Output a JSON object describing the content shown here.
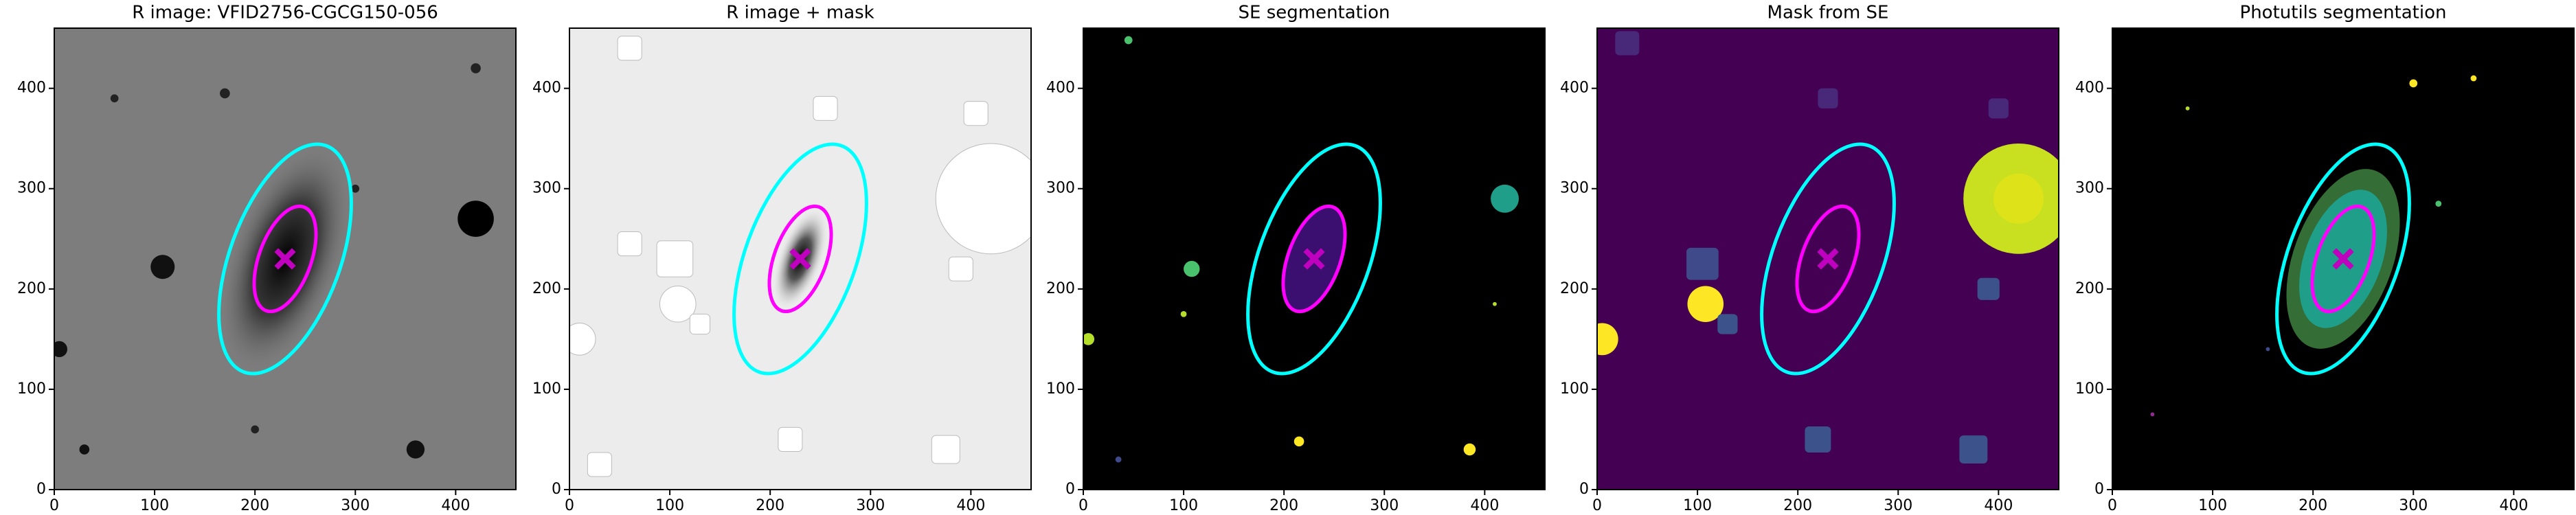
{
  "chart_data": [
    {
      "type": "image",
      "title": "R image: VFID2756-CGCG150-056",
      "background": "#7d7d7d",
      "xlim": [
        0,
        460
      ],
      "ylim": [
        0,
        460
      ],
      "xticks": [
        0,
        100,
        200,
        300,
        400
      ],
      "yticks": [
        0,
        100,
        200,
        300,
        400
      ],
      "ellipses": [
        {
          "color": "#00ffff",
          "x": 230,
          "y": 230,
          "a": 120,
          "b": 55,
          "angle": 70
        },
        {
          "color": "#ff00ff",
          "x": 230,
          "y": 230,
          "a": 55,
          "b": 26,
          "angle": 70
        }
      ],
      "marker": {
        "x": 230,
        "y": 230,
        "color": "#bf00bf"
      }
    },
    {
      "type": "image",
      "title": "R image + mask",
      "background": "#ececec",
      "xlim": [
        0,
        460
      ],
      "ylim": [
        0,
        460
      ],
      "xticks": [
        0,
        100,
        200,
        300,
        400
      ],
      "yticks": [
        0,
        100,
        200,
        300,
        400
      ],
      "ellipses": [
        {
          "color": "#00ffff",
          "x": 230,
          "y": 230,
          "a": 120,
          "b": 55,
          "angle": 70
        },
        {
          "color": "#ff00ff",
          "x": 230,
          "y": 230,
          "a": 55,
          "b": 26,
          "angle": 70
        }
      ],
      "marker": {
        "x": 230,
        "y": 230,
        "color": "#bf00bf"
      }
    },
    {
      "type": "image",
      "title": "SE segmentation",
      "background": "#000000",
      "xlim": [
        0,
        460
      ],
      "ylim": [
        0,
        460
      ],
      "xticks": [
        0,
        100,
        200,
        300,
        400
      ],
      "yticks": [
        0,
        100,
        200,
        300,
        400
      ],
      "ellipses": [
        {
          "color": "#00ffff",
          "x": 230,
          "y": 230,
          "a": 120,
          "b": 55,
          "angle": 70
        },
        {
          "color": "#ff00ff",
          "x": 230,
          "y": 230,
          "a": 55,
          "b": 26,
          "angle": 70
        }
      ],
      "marker": {
        "x": 230,
        "y": 230,
        "color": "#bf00bf"
      }
    },
    {
      "type": "image",
      "title": "Mask from SE",
      "background": "#440154",
      "xlim": [
        0,
        460
      ],
      "ylim": [
        0,
        460
      ],
      "xticks": [
        0,
        100,
        200,
        300,
        400
      ],
      "yticks": [
        0,
        100,
        200,
        300,
        400
      ],
      "ellipses": [
        {
          "color": "#00ffff",
          "x": 230,
          "y": 230,
          "a": 120,
          "b": 55,
          "angle": 70
        },
        {
          "color": "#ff00ff",
          "x": 230,
          "y": 230,
          "a": 55,
          "b": 26,
          "angle": 70
        }
      ],
      "marker": {
        "x": 230,
        "y": 230,
        "color": "#bf00bf"
      }
    },
    {
      "type": "image",
      "title": "Photutils segmentation",
      "background": "#000000",
      "xlim": [
        0,
        460
      ],
      "ylim": [
        0,
        460
      ],
      "xticks": [
        0,
        100,
        200,
        300,
        400
      ],
      "yticks": [
        0,
        100,
        200,
        300,
        400
      ],
      "ellipses": [
        {
          "color": "#00ffff",
          "x": 230,
          "y": 230,
          "a": 120,
          "b": 55,
          "angle": 70
        },
        {
          "color": "#ff00ff",
          "x": 230,
          "y": 230,
          "a": 55,
          "b": 26,
          "angle": 70
        }
      ],
      "marker": {
        "x": 230,
        "y": 230,
        "color": "#bf00bf"
      }
    }
  ]
}
